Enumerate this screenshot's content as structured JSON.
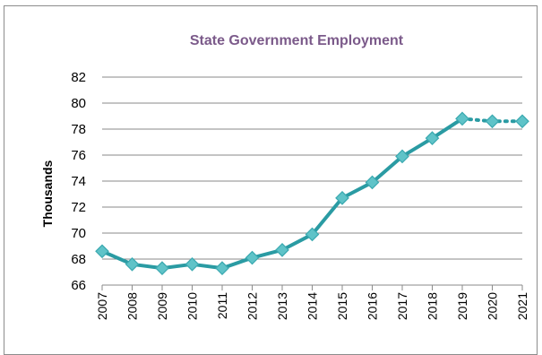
{
  "chart_data": {
    "type": "line",
    "title": "State Government Employment",
    "xlabel": "",
    "ylabel": "Thousands",
    "ylim": [
      66,
      82
    ],
    "yticks": [
      "66",
      "68",
      "70",
      "72",
      "74",
      "76",
      "78",
      "80",
      "82"
    ],
    "categories": [
      "2007",
      "2008",
      "2009",
      "2010",
      "2011",
      "2012",
      "2013",
      "2014",
      "2015",
      "2016",
      "2017",
      "2018",
      "2019",
      "2020",
      "2021"
    ],
    "series": [
      {
        "values": [
          68.6,
          67.6,
          67.3,
          67.6,
          67.3,
          68.1,
          68.7,
          69.9,
          72.7,
          73.9,
          75.9,
          77.3,
          78.8,
          78.6,
          78.6
        ],
        "solid_through_index": 12,
        "color": "#2a9ba3",
        "marker_color": "#5fc3c8"
      }
    ],
    "grid": "horizontal",
    "legend": "none"
  }
}
